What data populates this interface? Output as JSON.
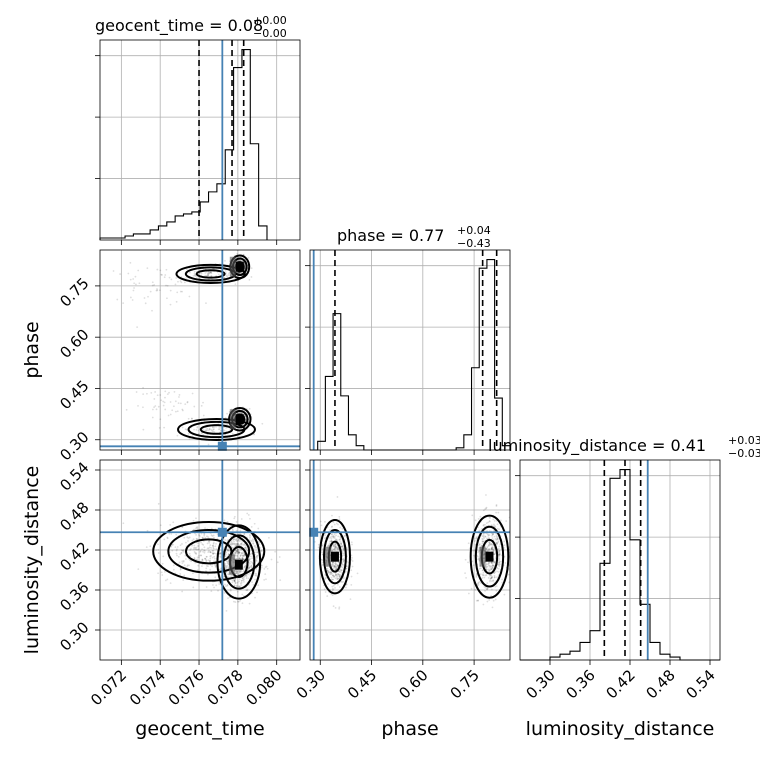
{
  "chart_data": {
    "type": "corner",
    "parameters": [
      "geocent_time",
      "phase",
      "luminosity_distance"
    ],
    "truths": {
      "geocent_time": 0.0772,
      "phase": 0.2808,
      "luminosity_distance": 0.4466
    },
    "axes": {
      "geocent_time": {
        "range": [
          0.0709,
          0.0812
        ],
        "ticks": [
          0.072,
          0.074,
          0.076,
          0.078,
          0.08
        ],
        "tick_labels": [
          "0.072",
          "0.074",
          "0.076",
          "0.078",
          "0.080"
        ]
      },
      "phase": {
        "range": [
          0.27,
          0.855
        ],
        "ticks": [
          0.3,
          0.45,
          0.6,
          0.75
        ],
        "tick_labels": [
          "0.30",
          "0.45",
          "0.60",
          "0.75"
        ]
      },
      "luminosity_distance": {
        "range": [
          0.255,
          0.555
        ],
        "ticks": [
          0.3,
          0.36,
          0.42,
          0.48,
          0.54
        ],
        "tick_labels": [
          "0.30",
          "0.36",
          "0.42",
          "0.48",
          "0.54"
        ]
      }
    },
    "marginals": {
      "geocent_time": {
        "title_main": "geocent_time = 0.08",
        "title_sup": "+0.00",
        "title_sub": "−0.00",
        "quantiles": [
          0.076,
          0.0777,
          0.0783
        ],
        "bin_edges": [
          0.0709,
          0.07133,
          0.07176,
          0.07219,
          0.07262,
          0.07305,
          0.07348,
          0.07391,
          0.07434,
          0.07477,
          0.0752,
          0.07563,
          0.07606,
          0.07649,
          0.07692,
          0.07735,
          0.07778,
          0.07821,
          0.07864,
          0.07907,
          0.0795
        ],
        "counts": [
          1,
          1,
          1,
          2,
          3,
          3,
          5,
          7,
          9,
          12,
          13,
          14,
          19,
          24,
          28,
          45,
          86,
          95,
          48,
          7
        ]
      },
      "phase": {
        "title_main": "phase = 0.77",
        "title_sup": "+0.04",
        "title_sub": "−0.43",
        "quantiles": [
          0.343,
          0.775,
          0.816
        ],
        "bin_edges": [
          0.27,
          0.2925,
          0.315,
          0.3375,
          0.36,
          0.3825,
          0.405,
          0.4275,
          0.45,
          0.4725,
          0.495,
          0.5175,
          0.54,
          0.5625,
          0.585,
          0.6075,
          0.63,
          0.6525,
          0.675,
          0.6975,
          0.72,
          0.7425,
          0.765,
          0.7875,
          0.81,
          0.8325,
          0.855
        ],
        "counts": [
          0,
          4,
          34,
          63,
          25,
          7,
          2,
          0,
          0,
          0,
          0,
          0,
          0,
          0,
          0,
          0,
          0,
          0,
          0,
          1,
          7,
          38,
          84,
          88,
          24,
          2
        ]
      },
      "luminosity_distance": {
        "title_main": "luminosity_distance = 0.41",
        "title_sup": "+0.03",
        "title_sub": "−0.03",
        "quantiles": [
          0.3815,
          0.4125,
          0.436
        ],
        "bin_edges": [
          0.255,
          0.27,
          0.285,
          0.3,
          0.315,
          0.33,
          0.345,
          0.36,
          0.375,
          0.39,
          0.405,
          0.42,
          0.435,
          0.45,
          0.465,
          0.48,
          0.495,
          0.51,
          0.525,
          0.54,
          0.555
        ],
        "counts": [
          0,
          0,
          0,
          1,
          2,
          3,
          6,
          10,
          33,
          62,
          65,
          41,
          19,
          6,
          2,
          1,
          0,
          0,
          0,
          0
        ]
      }
    },
    "joint": {
      "geocent_time__phase": {
        "lobes": [
          {
            "center": [
              0.0781,
              0.806
            ],
            "spread": [
              0.00022,
              0.015
            ],
            "weight": 0.34
          },
          {
            "center": [
              0.0766,
              0.785
            ],
            "spread": [
              0.0008,
              0.012
            ],
            "weight": 0.12
          },
          {
            "center": [
              0.0735,
              0.75
            ],
            "spread": [
              0.0012,
              0.03
            ],
            "weight": 0.05
          },
          {
            "center": [
              0.0781,
              0.36
            ],
            "spread": [
              0.00025,
              0.015
            ],
            "weight": 0.3
          },
          {
            "center": [
              0.0769,
              0.33
            ],
            "spread": [
              0.0009,
              0.014
            ],
            "weight": 0.11
          },
          {
            "center": [
              0.0745,
              0.4
            ],
            "spread": [
              0.001,
              0.025
            ],
            "weight": 0.05
          }
        ],
        "peaks": [
          [
            0.0781,
            0.806
          ],
          [
            0.0781,
            0.36
          ]
        ]
      },
      "geocent_time__luminosity_distance": {
        "lobes": [
          {
            "center": [
              0.07805,
              0.402
            ],
            "spread": [
              0.0005,
              0.025
            ],
            "weight": 0.6
          },
          {
            "center": [
              0.0765,
              0.418
            ],
            "spread": [
              0.0013,
              0.02
            ],
            "weight": 0.4
          }
        ],
        "peaks": [
          [
            0.07805,
            0.398
          ]
        ]
      },
      "phase__luminosity_distance": {
        "lobes": [
          {
            "center": [
              0.343,
              0.41
            ],
            "spread": [
              0.02,
              0.025
            ],
            "weight": 0.48
          },
          {
            "center": [
              0.795,
              0.41
            ],
            "spread": [
              0.025,
              0.028
            ],
            "weight": 0.52
          }
        ],
        "peaks": [
          [
            0.343,
            0.41
          ],
          [
            0.795,
            0.41
          ]
        ]
      }
    }
  }
}
